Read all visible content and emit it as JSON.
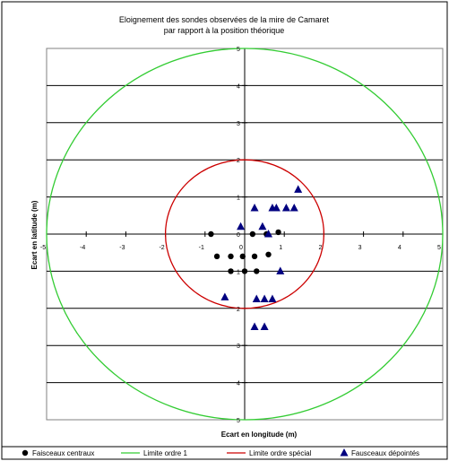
{
  "chart_data": {
    "type": "scatter",
    "title": "Eloignement des sondes observées de la mire de Camaret",
    "subtitle": "par rapport à la position théorique",
    "xlabel": "Ecart en longitude (m)",
    "ylabel": "Ecart en latitude (m)",
    "xlim": [
      -5,
      5
    ],
    "ylim": [
      -5,
      5
    ],
    "x_ticks": [
      "-5",
      "-4",
      "-3",
      "-2",
      "-1",
      "0",
      "1",
      "2",
      "3",
      "4",
      "5"
    ],
    "y_ticks": [
      "5",
      "4",
      "3",
      "2",
      "1",
      "0",
      "1",
      "2",
      "3",
      "4",
      "5"
    ],
    "grid": "horizontal",
    "legend_position": "bottom",
    "series": [
      {
        "name": "Faisceaux centraux",
        "marker": "circle",
        "color": "#000000",
        "x": [
          -0.85,
          0.2,
          0.55,
          0.85,
          -0.7,
          -0.35,
          -0.05,
          0.25,
          0.6,
          -0.35,
          0.0,
          0.3
        ],
        "y": [
          0.0,
          0.0,
          0.0,
          0.05,
          -0.6,
          -0.6,
          -0.6,
          -0.6,
          -0.55,
          -1.0,
          -1.0,
          -1.0
        ]
      },
      {
        "name": "Fausceaux dépointés",
        "marker": "triangle",
        "color": "#000080",
        "x": [
          1.35,
          0.25,
          0.7,
          0.8,
          1.05,
          1.25,
          -0.1,
          0.45,
          0.6,
          0.9,
          -0.5,
          0.3,
          0.5,
          0.7,
          0.25,
          0.5
        ],
        "y": [
          1.2,
          0.7,
          0.7,
          0.7,
          0.7,
          0.7,
          0.2,
          0.2,
          0.0,
          -1.0,
          -1.7,
          -1.75,
          -1.75,
          -1.75,
          -2.5,
          -2.5
        ]
      },
      {
        "name": "Limite ordre 1",
        "type": "circle",
        "radius": 5,
        "color": "#33cc33"
      },
      {
        "name": "Limite ordre spécial",
        "type": "circle",
        "radius": 2,
        "color": "#cc0000"
      }
    ]
  }
}
